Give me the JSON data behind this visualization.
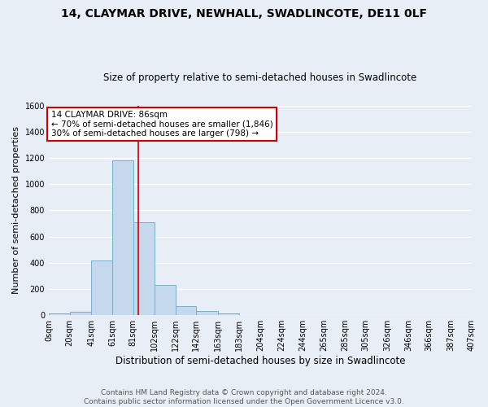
{
  "title1": "14, CLAYMAR DRIVE, NEWHALL, SWADLINCOTE, DE11 0LF",
  "title2": "Size of property relative to semi-detached houses in Swadlincote",
  "xlabel": "Distribution of semi-detached houses by size in Swadlincote",
  "ylabel": "Number of semi-detached properties",
  "footer1": "Contains HM Land Registry data © Crown copyright and database right 2024.",
  "footer2": "Contains public sector information licensed under the Open Government Licence v3.0.",
  "annotation_line1": "14 CLAYMAR DRIVE: 86sqm",
  "annotation_line2": "← 70% of semi-detached houses are smaller (1,846)",
  "annotation_line3": "30% of semi-detached houses are larger (798) →",
  "property_size": 86,
  "bin_edges": [
    0,
    20,
    41,
    61,
    81,
    102,
    122,
    142,
    163,
    183,
    204,
    224,
    244,
    265,
    285,
    305,
    326,
    346,
    366,
    387,
    407
  ],
  "bar_heights": [
    15,
    28,
    420,
    1180,
    710,
    228,
    68,
    32,
    16,
    0,
    0,
    0,
    0,
    0,
    0,
    0,
    0,
    0,
    0,
    0
  ],
  "bar_color": "#c5d8ec",
  "bar_edge_color": "#7aaed0",
  "vline_color": "#cc0000",
  "vline_x": 86,
  "ylim": [
    0,
    1600
  ],
  "yticks": [
    0,
    200,
    400,
    600,
    800,
    1000,
    1200,
    1400,
    1600
  ],
  "xtick_labels": [
    "0sqm",
    "20sqm",
    "41sqm",
    "61sqm",
    "81sqm",
    "102sqm",
    "122sqm",
    "142sqm",
    "163sqm",
    "183sqm",
    "204sqm",
    "224sqm",
    "244sqm",
    "265sqm",
    "285sqm",
    "305sqm",
    "326sqm",
    "346sqm",
    "366sqm",
    "387sqm",
    "407sqm"
  ],
  "grid_color": "#ffffff",
  "bg_color": "#e8eef5",
  "annotation_box_color": "#ffffff",
  "annotation_box_edge": "#cc0000",
  "title1_fontsize": 10,
  "title2_fontsize": 8.5,
  "ylabel_fontsize": 8,
  "xlabel_fontsize": 8.5,
  "tick_fontsize": 7,
  "footer_fontsize": 6.5
}
